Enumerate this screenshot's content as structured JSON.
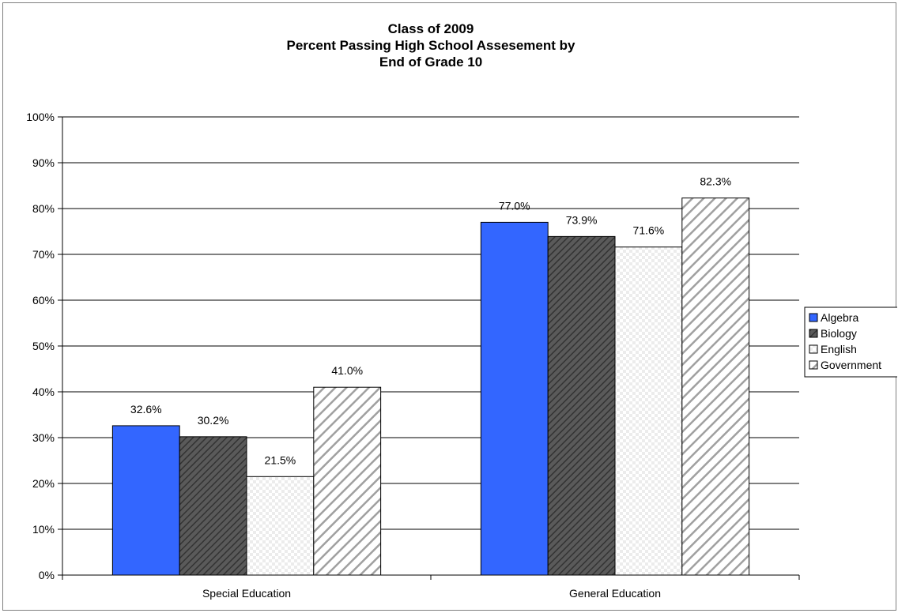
{
  "chart_data": {
    "type": "bar",
    "title_lines": [
      "Class of 2009",
      "Percent Passing High School Assesement by",
      "End of Grade 10"
    ],
    "categories": [
      "Special Education",
      "General Education"
    ],
    "series": [
      {
        "name": "Algebra",
        "values": [
          32.6,
          77.0
        ],
        "labels": [
          "32.6%",
          "77.0%"
        ],
        "color": "#3366ff",
        "pattern": "solid"
      },
      {
        "name": "Biology",
        "values": [
          30.2,
          73.9
        ],
        "labels": [
          "30.2%",
          "73.9%"
        ],
        "color": "#4d4d4d",
        "pattern": "dark-diagonal"
      },
      {
        "name": "English",
        "values": [
          21.5,
          71.6
        ],
        "labels": [
          "21.5%",
          "71.6%"
        ],
        "color": "#ffffff",
        "pattern": "light-check"
      },
      {
        "name": "Government",
        "values": [
          41.0,
          82.3
        ],
        "labels": [
          "41.0%",
          "82.3%"
        ],
        "color": "#c0c0c0",
        "pattern": "wide-diagonal"
      }
    ],
    "ylim": [
      0,
      100
    ],
    "yticks": [
      0,
      10,
      20,
      30,
      40,
      50,
      60,
      70,
      80,
      90,
      100
    ],
    "ytick_labels": [
      "0%",
      "10%",
      "20%",
      "30%",
      "40%",
      "50%",
      "60%",
      "70%",
      "80%",
      "90%",
      "100%"
    ],
    "xlabel": "",
    "ylabel": "",
    "grid": true,
    "legend_position": "right"
  }
}
